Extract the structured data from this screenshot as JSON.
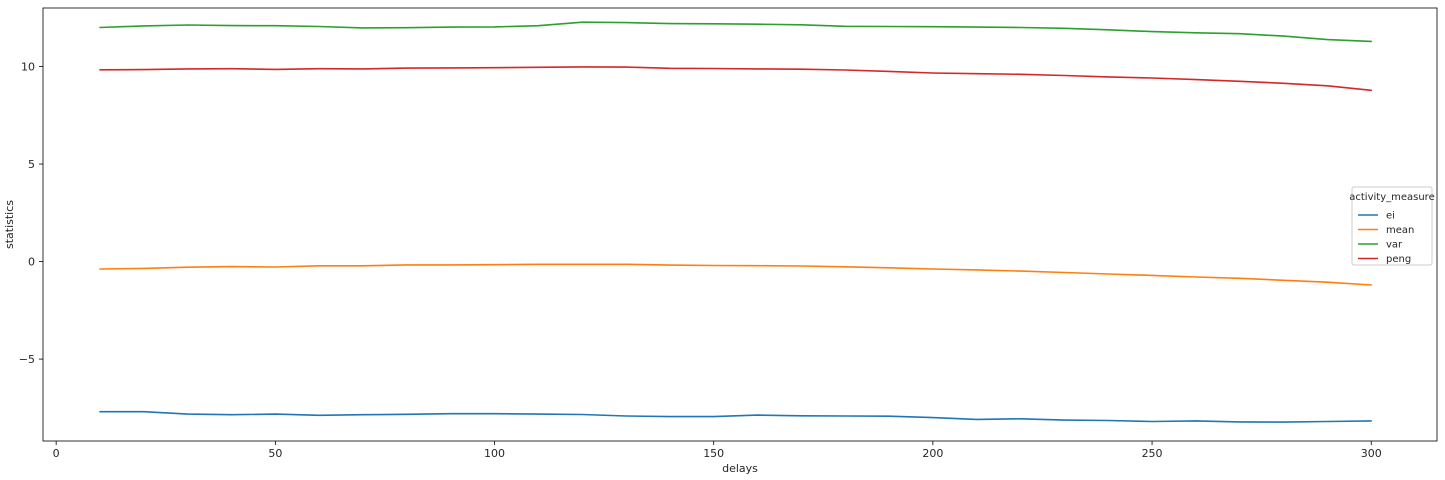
{
  "chart_data": {
    "type": "line",
    "title": "",
    "xlabel": "delays",
    "ylabel": "statistics",
    "xlim": [
      -3,
      315
    ],
    "ylim": [
      -9.2,
      13.0
    ],
    "xticks": [
      0,
      50,
      100,
      150,
      200,
      250,
      300
    ],
    "xtick_labels": [
      "0",
      "50",
      "100",
      "150",
      "200",
      "250",
      "300"
    ],
    "yticks": [
      -5,
      0,
      5,
      10
    ],
    "ytick_labels": [
      "−5",
      "0",
      "5",
      "10"
    ],
    "grid": false,
    "legend_title": "activity_measure",
    "legend_position": "center-right",
    "x": [
      10,
      20,
      30,
      40,
      50,
      60,
      70,
      80,
      90,
      100,
      110,
      120,
      130,
      140,
      150,
      160,
      170,
      180,
      190,
      200,
      210,
      220,
      230,
      240,
      250,
      260,
      270,
      280,
      290,
      300
    ],
    "series": [
      {
        "name": "ei",
        "color": "#1f77b4",
        "values": [
          -7.7,
          -7.7,
          -7.82,
          -7.85,
          -7.82,
          -7.88,
          -7.85,
          -7.83,
          -7.8,
          -7.8,
          -7.82,
          -7.84,
          -7.92,
          -7.95,
          -7.95,
          -7.87,
          -7.91,
          -7.92,
          -7.93,
          -8.0,
          -8.09,
          -8.06,
          -8.13,
          -8.15,
          -8.2,
          -8.17,
          -8.22,
          -8.23,
          -8.2,
          -8.17
        ]
      },
      {
        "name": "mean",
        "color": "#ff7f0e",
        "values": [
          -0.38,
          -0.35,
          -0.29,
          -0.26,
          -0.28,
          -0.22,
          -0.22,
          -0.17,
          -0.17,
          -0.16,
          -0.14,
          -0.14,
          -0.14,
          -0.18,
          -0.2,
          -0.21,
          -0.23,
          -0.27,
          -0.32,
          -0.38,
          -0.43,
          -0.49,
          -0.56,
          -0.64,
          -0.71,
          -0.79,
          -0.86,
          -0.96,
          -1.06,
          -1.2
        ]
      },
      {
        "name": "var",
        "color": "#2ca02c",
        "values": [
          12.0,
          12.08,
          12.13,
          12.1,
          12.09,
          12.05,
          11.98,
          11.99,
          12.02,
          12.03,
          12.09,
          12.27,
          12.25,
          12.2,
          12.19,
          12.17,
          12.14,
          12.06,
          12.05,
          12.04,
          12.02,
          12.0,
          11.96,
          11.88,
          11.79,
          11.73,
          11.68,
          11.56,
          11.38,
          11.29
        ]
      },
      {
        "name": "peng",
        "color": "#d62728",
        "values": [
          9.83,
          9.84,
          9.88,
          9.89,
          9.85,
          9.89,
          9.88,
          9.92,
          9.93,
          9.94,
          9.96,
          9.98,
          9.97,
          9.91,
          9.9,
          9.88,
          9.86,
          9.82,
          9.75,
          9.67,
          9.63,
          9.6,
          9.54,
          9.47,
          9.41,
          9.33,
          9.24,
          9.14,
          9.01,
          8.78
        ]
      }
    ]
  }
}
